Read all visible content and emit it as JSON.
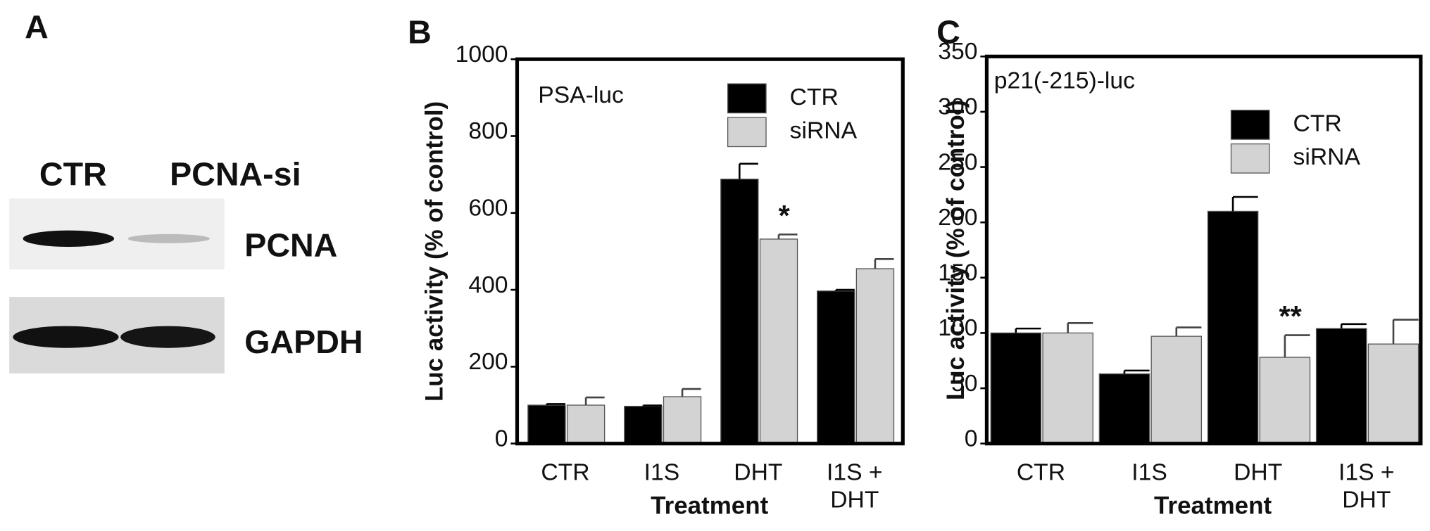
{
  "panel_a": {
    "label": "A",
    "columns": [
      "CTR",
      "PCNA-si"
    ],
    "rows": [
      "PCNA",
      "GAPDH"
    ]
  },
  "chart_data": [
    {
      "type": "bar",
      "panel_label": "B",
      "subtitle": "PSA-luc",
      "ylabel": "Luc activity (% of control)",
      "xlabel": "Treatment",
      "categories": [
        "CTR",
        "I1S",
        "DHT",
        "I1S + DHT"
      ],
      "series": [
        {
          "name": "CTR",
          "color": "#000000",
          "values": [
            100,
            97,
            688,
            397
          ],
          "errors": [
            3,
            2,
            40,
            3
          ]
        },
        {
          "name": "siRNA",
          "color": "#d3d3d3",
          "values": [
            100,
            122,
            532,
            455
          ],
          "errors": [
            20,
            20,
            12,
            25
          ]
        }
      ],
      "ylim": [
        0,
        1000
      ],
      "yticks": [
        0,
        200,
        400,
        600,
        800,
        1000
      ],
      "annotations": [
        {
          "text": "*",
          "category": 2,
          "series": 1
        }
      ]
    },
    {
      "type": "bar",
      "panel_label": "C",
      "subtitle": "p21(-215)-luc",
      "ylabel": "Luc activity (% of control)",
      "xlabel": "Treatment",
      "categories": [
        "CTR",
        "I1S",
        "DHT",
        "I1S + DHT"
      ],
      "series": [
        {
          "name": "CTR",
          "color": "#000000",
          "values": [
            100,
            63,
            210,
            104
          ],
          "errors": [
            4,
            3,
            13,
            4
          ]
        },
        {
          "name": "siRNA",
          "color": "#d3d3d3",
          "values": [
            100,
            97,
            78,
            90
          ],
          "errors": [
            9,
            8,
            20,
            22
          ]
        }
      ],
      "ylim": [
        0,
        350
      ],
      "yticks": [
        0,
        50,
        100,
        150,
        200,
        250,
        300,
        350
      ],
      "annotations": [
        {
          "text": "**",
          "category": 2,
          "series": 1
        }
      ]
    }
  ]
}
